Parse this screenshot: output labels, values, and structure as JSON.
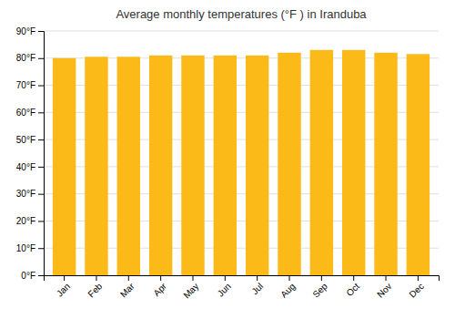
{
  "chart_data": {
    "type": "bar",
    "title": "Average monthly temperatures (°F ) in Iranduba",
    "categories": [
      "Jan",
      "Feb",
      "Mar",
      "Apr",
      "May",
      "Jun",
      "Jul",
      "Aug",
      "Sep",
      "Oct",
      "Nov",
      "Dec"
    ],
    "values": [
      80,
      80.5,
      80.5,
      81,
      81,
      81,
      81,
      82,
      83,
      83,
      82,
      81.5
    ],
    "color": "#FBBA18",
    "ylim": [
      0,
      90
    ],
    "yticks": [
      {
        "value": 0,
        "label": "0°F"
      },
      {
        "value": 10,
        "label": "10°F"
      },
      {
        "value": 20,
        "label": "20°F"
      },
      {
        "value": 30,
        "label": "30°F"
      },
      {
        "value": 40,
        "label": "40°F"
      },
      {
        "value": 50,
        "label": "50°F"
      },
      {
        "value": 60,
        "label": "60°F"
      },
      {
        "value": 70,
        "label": "70°F"
      },
      {
        "value": 80,
        "label": "80°F"
      },
      {
        "value": 90,
        "label": "90°F"
      }
    ],
    "grid": true
  }
}
